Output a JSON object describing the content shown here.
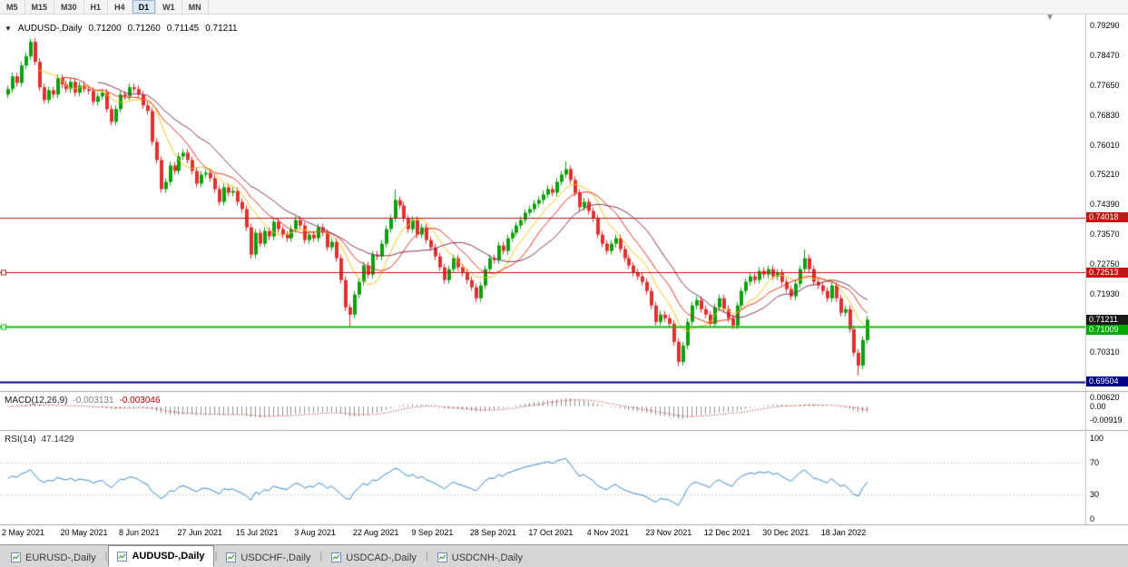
{
  "toolbar": {
    "timeframes": [
      "M5",
      "M15",
      "M30",
      "H1",
      "H4",
      "D1",
      "W1",
      "MN"
    ],
    "active": "D1"
  },
  "symbol_line": {
    "dropdown_icon": "▼",
    "symbol": "AUDUSD-,Daily",
    "open": "0.71200",
    "high": "0.71260",
    "low": "0.71145",
    "close": "0.71211"
  },
  "price_axis": {
    "ticks": [
      "0.79290",
      "0.78470",
      "0.77650",
      "0.76830",
      "0.76010",
      "0.75210",
      "0.74390",
      "0.73570",
      "0.72750",
      "0.71930",
      "0.70310"
    ],
    "markers": [
      {
        "name": "resistance-upper",
        "price": 0.74018,
        "label": "0.74018",
        "bg": "#c41414",
        "fg": "#ffffff",
        "line": "#c41414",
        "line_width": 1,
        "handles": false
      },
      {
        "name": "resistance-lower",
        "price": 0.72513,
        "label": "0.72513",
        "bg": "#c41414",
        "fg": "#ffffff",
        "line": "#c41414",
        "line_width": 1,
        "handles": true
      },
      {
        "name": "last-price",
        "price": 0.71211,
        "label": "0.71211",
        "bg": "#1a1a1a",
        "fg": "#ffffff",
        "line": null,
        "line_width": 0,
        "handles": false
      },
      {
        "name": "support-green",
        "price": 0.71009,
        "label": "0.71009",
        "bg": "#00a800",
        "fg": "#ffffff",
        "line": "#00c400",
        "line_width": 2,
        "handles": true
      },
      {
        "name": "support-navy",
        "price": 0.69504,
        "label": "0.69504",
        "bg": "#000085",
        "fg": "#ffffff",
        "line": "#000085",
        "line_width": 2,
        "handles": false
      }
    ]
  },
  "macd": {
    "title": "MACD(12,26,9)",
    "value_main": "-0.003131",
    "value_signal": "-0.003046",
    "axis": [
      "0.00620",
      "0.00",
      "-0.00919"
    ],
    "params": {
      "fast": 12,
      "slow": 26,
      "signal": 9
    },
    "colors": {
      "histogram": "#909090",
      "signal": "#c00000"
    }
  },
  "rsi": {
    "title": "RSI(14)",
    "value": "47.1429",
    "axis": [
      "100",
      "70",
      "30",
      "0"
    ],
    "period": 14,
    "levels": [
      70,
      30
    ],
    "color": "#3585c5"
  },
  "time_axis": {
    "labels": [
      "2 May 2021",
      "20 May 2021",
      "8 Jun 2021",
      "27 Jun 2021",
      "15 Jul 2021",
      "3 Aug 2021",
      "22 Aug 2021",
      "9 Sep 2021",
      "28 Sep 2021",
      "17 Oct 2021",
      "4 Nov 2021",
      "23 Nov 2021",
      "12 Dec 2021",
      "30 Dec 2021",
      "18 Jan 2022"
    ],
    "candles_per_label": 13
  },
  "tabs": {
    "items": [
      "EURUSD-,Daily",
      "AUDUSD-,Daily",
      "USDCHF-,Daily",
      "USDCAD-,Daily",
      "USDCNH-,Daily"
    ],
    "active_index": 1
  },
  "misc": {
    "scroll_marker": "▼"
  },
  "chart_data": {
    "type": "candlestick",
    "symbol": "AUDUSD",
    "timeframe": "Daily",
    "ylim": [
      0.6925,
      0.796
    ],
    "first_open": 0.774,
    "up_color": "#0ca00c",
    "down_color": "#e03030",
    "closes": [
      0.7755,
      0.779,
      0.7772,
      0.782,
      0.7845,
      0.7885,
      0.783,
      0.776,
      0.7725,
      0.7752,
      0.774,
      0.7785,
      0.7768,
      0.7755,
      0.7775,
      0.7745,
      0.7765,
      0.7755,
      0.775,
      0.772,
      0.7735,
      0.7745,
      0.77,
      0.7665,
      0.77,
      0.774,
      0.7735,
      0.776,
      0.7755,
      0.774,
      0.771,
      0.7695,
      0.761,
      0.756,
      0.748,
      0.75,
      0.7545,
      0.753,
      0.757,
      0.758,
      0.756,
      0.753,
      0.7495,
      0.752,
      0.7525,
      0.751,
      0.748,
      0.7445,
      0.7485,
      0.747,
      0.7475,
      0.7445,
      0.7425,
      0.7375,
      0.73,
      0.736,
      0.733,
      0.7365,
      0.735,
      0.739,
      0.737,
      0.7355,
      0.7345,
      0.737,
      0.7395,
      0.738,
      0.734,
      0.7355,
      0.7345,
      0.7375,
      0.736,
      0.732,
      0.7335,
      0.729,
      0.723,
      0.7155,
      0.7135,
      0.719,
      0.7225,
      0.727,
      0.7245,
      0.73,
      0.7295,
      0.733,
      0.737,
      0.74,
      0.745,
      0.7435,
      0.74,
      0.737,
      0.7395,
      0.7355,
      0.7375,
      0.734,
      0.732,
      0.7295,
      0.7265,
      0.723,
      0.726,
      0.729,
      0.7265,
      0.725,
      0.723,
      0.721,
      0.718,
      0.7215,
      0.726,
      0.729,
      0.7285,
      0.7325,
      0.731,
      0.7345,
      0.736,
      0.738,
      0.7395,
      0.7415,
      0.7425,
      0.744,
      0.745,
      0.7465,
      0.748,
      0.747,
      0.75,
      0.752,
      0.7535,
      0.7505,
      0.747,
      0.743,
      0.7445,
      0.742,
      0.74,
      0.7355,
      0.733,
      0.731,
      0.733,
      0.7345,
      0.7315,
      0.729,
      0.727,
      0.725,
      0.724,
      0.7225,
      0.72,
      0.716,
      0.7115,
      0.7135,
      0.7125,
      0.711,
      0.706,
      0.7005,
      0.705,
      0.7115,
      0.716,
      0.7175,
      0.715,
      0.7135,
      0.711,
      0.7155,
      0.718,
      0.715,
      0.7125,
      0.7105,
      0.716,
      0.72,
      0.7225,
      0.724,
      0.723,
      0.7255,
      0.7245,
      0.726,
      0.724,
      0.725,
      0.7225,
      0.7205,
      0.7185,
      0.722,
      0.726,
      0.729,
      0.726,
      0.7225,
      0.7215,
      0.72,
      0.718,
      0.7215,
      0.718,
      0.714,
      0.715,
      0.7095,
      0.703,
      0.6995,
      0.7065,
      0.7121
    ],
    "wick_overrides": {
      "5": {
        "h": 0.7893
      },
      "54": {
        "l": 0.7289
      },
      "76": {
        "l": 0.7102
      },
      "86": {
        "h": 0.7478
      },
      "104": {
        "l": 0.717
      },
      "124": {
        "h": 0.7556
      },
      "149": {
        "l": 0.6993
      },
      "177": {
        "h": 0.7314
      },
      "189": {
        "l": 0.6968
      }
    },
    "ma": [
      {
        "period": 8,
        "color": "#efc414"
      },
      {
        "period": 13,
        "color": "#e0301e"
      },
      {
        "period": 21,
        "color": "#7e2f5c"
      }
    ]
  }
}
